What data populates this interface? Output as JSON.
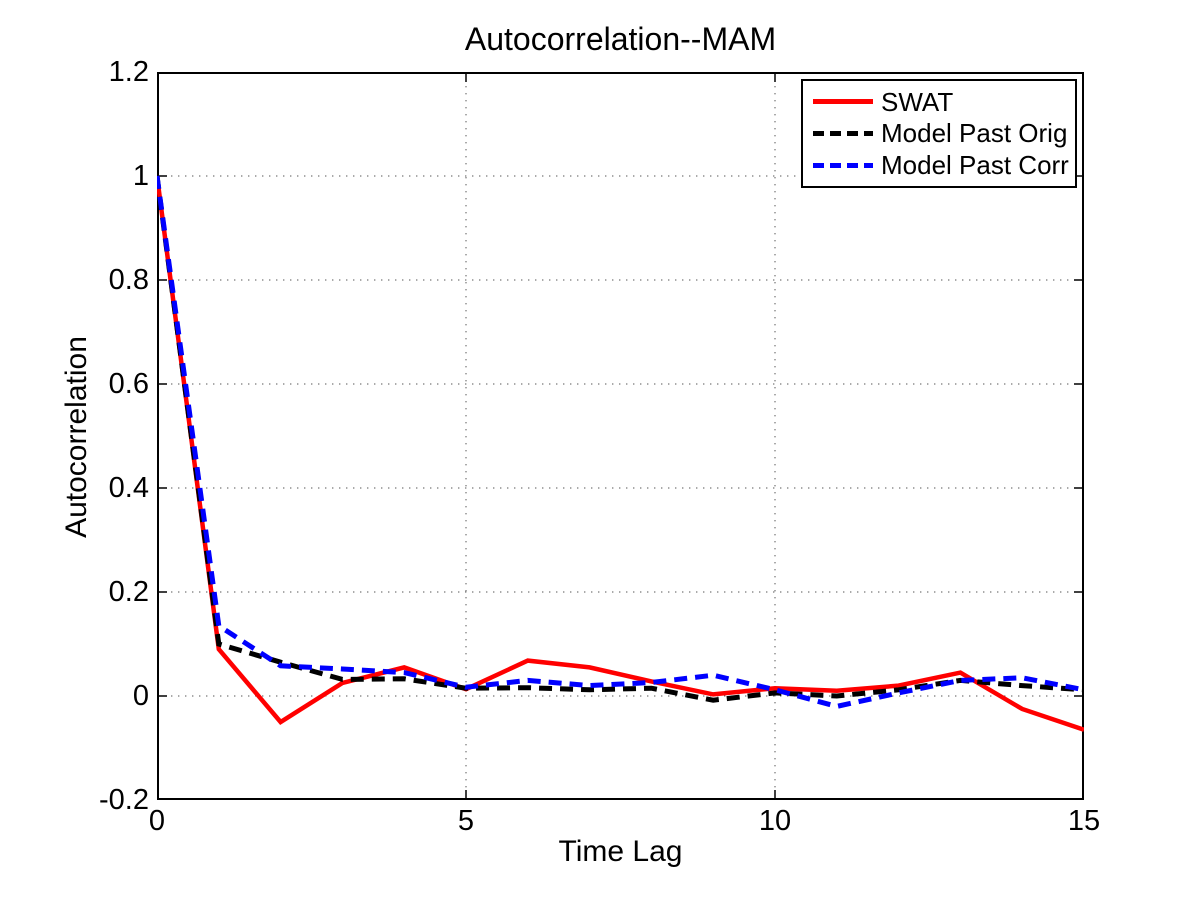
{
  "chart_data": {
    "type": "line",
    "title": "Autocorrelation--MAM",
    "xlabel": "Time Lag",
    "ylabel": "Autocorrelation",
    "xlim": [
      0,
      15
    ],
    "ylim": [
      -0.2,
      1.2
    ],
    "x_ticks": [
      0,
      5,
      10,
      15
    ],
    "y_ticks": [
      -0.2,
      0,
      0.2,
      0.4,
      0.6,
      0.8,
      1,
      1.2
    ],
    "grid": true,
    "grid_style": "dotted",
    "legend_position": "top-right",
    "background": "#ffffff",
    "x": [
      0,
      1,
      2,
      3,
      4,
      5,
      6,
      7,
      8,
      9,
      10,
      11,
      12,
      13,
      14,
      15
    ],
    "series": [
      {
        "name": "SWAT",
        "color": "#ff0000",
        "line_style": "solid",
        "values": [
          1.0,
          0.09,
          -0.05,
          0.025,
          0.055,
          0.013,
          0.068,
          0.055,
          0.028,
          0.003,
          0.015,
          0.01,
          0.02,
          0.045,
          -0.025,
          -0.065
        ]
      },
      {
        "name": "Model Past Orig",
        "color": "#000000",
        "line_style": "dashed",
        "values": [
          1.0,
          0.1,
          0.065,
          0.032,
          0.033,
          0.015,
          0.016,
          0.012,
          0.015,
          -0.008,
          0.006,
          0.0,
          0.012,
          0.03,
          0.02,
          0.012
        ]
      },
      {
        "name": "Model Past Corr",
        "color": "#0000ff",
        "line_style": "dashed",
        "values": [
          1.0,
          0.135,
          0.058,
          0.052,
          0.045,
          0.017,
          0.03,
          0.02,
          0.026,
          0.04,
          0.012,
          -0.02,
          0.006,
          0.03,
          0.035,
          0.012
        ]
      }
    ]
  }
}
